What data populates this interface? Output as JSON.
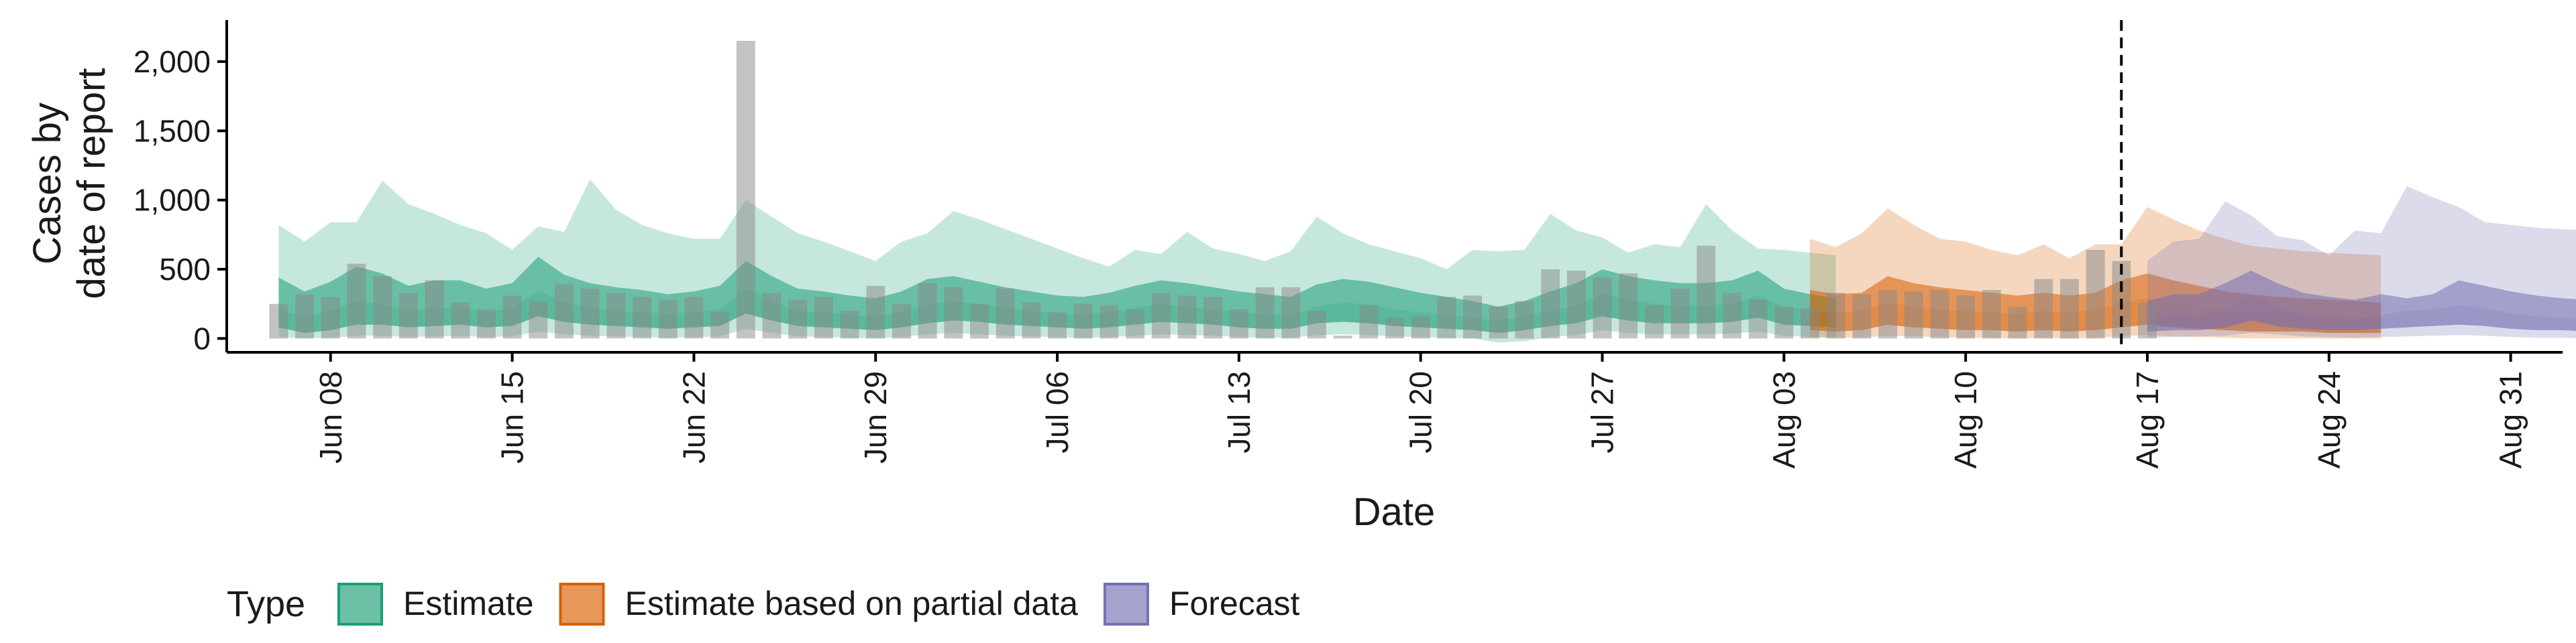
{
  "chart_data": {
    "type": "area",
    "xlabel": "Date",
    "ylabel_lines": [
      "Cases by",
      "date of report"
    ],
    "x_range": [
      "2020-06-04",
      "2020-09-02"
    ],
    "ylim": [
      -100,
      2300
    ],
    "y_ticks": [
      0,
      500,
      1000,
      1500,
      2000
    ],
    "y_tick_labels": [
      "0",
      "500",
      "1,000",
      "1,500",
      "2,000"
    ],
    "x_ticks": [
      "2020-06-08",
      "2020-06-15",
      "2020-06-22",
      "2020-06-29",
      "2020-07-06",
      "2020-07-13",
      "2020-07-20",
      "2020-07-27",
      "2020-08-03",
      "2020-08-10",
      "2020-08-17",
      "2020-08-24",
      "2020-08-31"
    ],
    "x_tick_labels": [
      "Jun 08",
      "Jun 15",
      "Jun 22",
      "Jun 29",
      "Jul 06",
      "Jul 13",
      "Jul 20",
      "Jul 27",
      "Aug 03",
      "Aug 10",
      "Aug 17",
      "Aug 24",
      "Aug 31"
    ],
    "grid": false,
    "legend_position": "bottom",
    "legend_title": "Type",
    "vline_date": "2020-08-16",
    "bars_start": "2020-06-06",
    "reported_cases": [
      250,
      320,
      300,
      540,
      450,
      330,
      420,
      260,
      210,
      310,
      270,
      390,
      360,
      330,
      300,
      280,
      300,
      190,
      2150,
      330,
      280,
      300,
      200,
      380,
      250,
      400,
      370,
      250,
      360,
      260,
      190,
      250,
      240,
      210,
      330,
      310,
      300,
      210,
      370,
      370,
      200,
      20,
      240,
      150,
      160,
      300,
      310,
      230,
      270,
      500,
      490,
      440,
      470,
      240,
      360,
      670,
      330,
      280,
      230,
      220,
      330,
      320,
      350,
      340,
      350,
      310,
      350,
      230,
      430,
      430,
      640,
      560,
      260
    ],
    "series": [
      {
        "name": "Estimate",
        "color": "#1b9e77",
        "start": "2020-06-06",
        "median": [
          210,
          150,
          200,
          270,
          250,
          200,
          220,
          230,
          190,
          220,
          340,
          260,
          220,
          200,
          190,
          180,
          190,
          210,
          360,
          270,
          200,
          190,
          170,
          160,
          190,
          250,
          270,
          250,
          220,
          200,
          180,
          170,
          190,
          220,
          250,
          230,
          210,
          190,
          180,
          170,
          230,
          260,
          250,
          210,
          190,
          170,
          150,
          130,
          160,
          200,
          240,
          320,
          280,
          250,
          240,
          240,
          250,
          310,
          230,
          200,
          190
        ],
        "inner_lower": [
          80,
          40,
          60,
          100,
          100,
          80,
          90,
          100,
          80,
          90,
          160,
          120,
          100,
          90,
          80,
          70,
          80,
          90,
          180,
          130,
          90,
          80,
          70,
          60,
          80,
          110,
          130,
          120,
          100,
          90,
          80,
          70,
          80,
          100,
          120,
          110,
          100,
          80,
          70,
          70,
          110,
          120,
          110,
          90,
          80,
          70,
          60,
          40,
          60,
          90,
          110,
          160,
          130,
          110,
          110,
          110,
          120,
          150,
          100,
          90,
          80
        ],
        "inner_upper": [
          440,
          340,
          410,
          520,
          470,
          380,
          420,
          420,
          360,
          400,
          590,
          460,
          400,
          370,
          350,
          320,
          340,
          380,
          560,
          450,
          360,
          340,
          310,
          290,
          340,
          430,
          450,
          410,
          370,
          340,
          310,
          300,
          330,
          380,
          420,
          400,
          370,
          340,
          320,
          300,
          390,
          430,
          410,
          370,
          330,
          300,
          270,
          230,
          270,
          340,
          400,
          500,
          450,
          420,
          400,
          400,
          420,
          490,
          360,
          320,
          290
        ],
        "outer_lower": [
          10,
          0,
          5,
          20,
          20,
          10,
          15,
          20,
          10,
          15,
          50,
          30,
          20,
          15,
          10,
          5,
          10,
          15,
          70,
          40,
          15,
          10,
          5,
          0,
          10,
          30,
          40,
          30,
          20,
          15,
          10,
          5,
          10,
          20,
          30,
          25,
          20,
          10,
          5,
          5,
          25,
          30,
          25,
          15,
          10,
          5,
          0,
          -30,
          -20,
          10,
          25,
          60,
          40,
          30,
          30,
          30,
          35,
          50,
          20,
          10,
          5
        ],
        "outer_upper": [
          820,
          700,
          840,
          840,
          1140,
          970,
          900,
          820,
          760,
          640,
          810,
          770,
          1150,
          930,
          820,
          760,
          720,
          720,
          1000,
          880,
          760,
          700,
          630,
          560,
          700,
          760,
          920,
          860,
          790,
          720,
          650,
          580,
          520,
          640,
          610,
          770,
          650,
          610,
          560,
          630,
          880,
          760,
          680,
          630,
          580,
          500,
          640,
          630,
          640,
          900,
          780,
          730,
          620,
          680,
          660,
          970,
          780,
          650,
          640,
          620,
          600
        ]
      },
      {
        "name": "Estimate based on partial data",
        "color": "#d95f02",
        "start": "2020-08-04",
        "median": [
          190,
          180,
          200,
          260,
          230,
          210,
          200,
          190,
          180,
          200,
          190,
          210,
          260,
          290,
          260,
          230,
          200,
          190,
          180,
          170,
          160,
          150,
          140
        ],
        "inner_lower": [
          60,
          50,
          60,
          100,
          80,
          70,
          60,
          60,
          50,
          60,
          50,
          60,
          80,
          100,
          80,
          70,
          60,
          50,
          50,
          50,
          40,
          40,
          40
        ],
        "inner_upper": [
          350,
          320,
          330,
          450,
          400,
          370,
          350,
          330,
          310,
          330,
          310,
          330,
          420,
          470,
          420,
          380,
          340,
          320,
          300,
          290,
          280,
          270,
          260
        ],
        "outer_lower": [
          10,
          5,
          5,
          20,
          15,
          10,
          5,
          5,
          0,
          5,
          0,
          5,
          15,
          25,
          15,
          10,
          5,
          0,
          0,
          0,
          0,
          0,
          0
        ],
        "outer_upper": [
          720,
          660,
          760,
          940,
          820,
          720,
          700,
          640,
          600,
          680,
          580,
          680,
          680,
          950,
          860,
          780,
          720,
          670,
          650,
          630,
          620,
          610,
          600
        ]
      },
      {
        "name": "Forecast",
        "color": "#7570b3",
        "start": "2020-08-17",
        "median": [
          140,
          170,
          160,
          200,
          320,
          220,
          180,
          160,
          150,
          170,
          200,
          210,
          240,
          220,
          180,
          160,
          150,
          140
        ],
        "inner_lower": [
          50,
          60,
          60,
          80,
          130,
          90,
          70,
          60,
          60,
          70,
          80,
          90,
          100,
          90,
          70,
          60,
          60,
          50
        ],
        "inner_upper": [
          270,
          320,
          320,
          400,
          490,
          400,
          330,
          300,
          280,
          320,
          290,
          320,
          420,
          380,
          340,
          310,
          290,
          280
        ],
        "outer_lower": [
          5,
          10,
          15,
          20,
          40,
          30,
          15,
          10,
          5,
          10,
          15,
          20,
          25,
          20,
          10,
          5,
          5,
          0
        ],
        "outer_upper": [
          560,
          700,
          720,
          990,
          890,
          740,
          710,
          600,
          780,
          760,
          1100,
          1020,
          950,
          840,
          820,
          800,
          790,
          780
        ]
      }
    ]
  }
}
